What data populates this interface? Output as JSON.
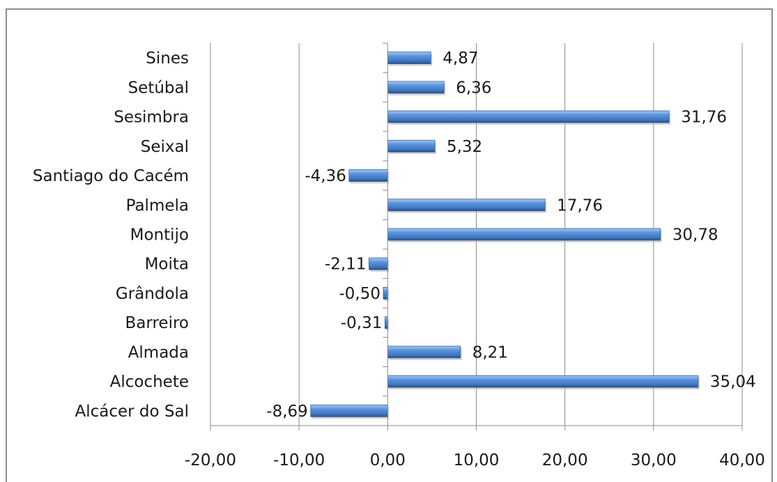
{
  "chart_data": {
    "type": "bar",
    "orientation": "horizontal",
    "categories": [
      "Alcácer do Sal",
      "Alcochete",
      "Almada",
      "Barreiro",
      "Grândola",
      "Moita",
      "Montijo",
      "Palmela",
      "Santiago do Cacém",
      "Seixal",
      "Sesimbra",
      "Setúbal",
      "Sines"
    ],
    "values": [
      -8.69,
      35.04,
      8.21,
      -0.31,
      -0.5,
      -2.11,
      30.78,
      17.76,
      -4.36,
      5.32,
      31.76,
      6.36,
      4.87
    ],
    "data_labels": [
      "-8,69",
      "35,04",
      "8,21",
      "-0,31",
      "-0,50",
      "-2,11",
      "30,78",
      "17,76",
      "-4,36",
      "5,32",
      "31,76",
      "6,36",
      "4,87"
    ],
    "xlim": [
      -20,
      40
    ],
    "x_ticks": [
      -20,
      -10,
      0,
      10,
      20,
      30,
      40
    ],
    "x_tick_labels": [
      "-20,00",
      "-10,00",
      "0,00",
      "10,00",
      "20,00",
      "30,00",
      "40,00"
    ],
    "grid": "vertical",
    "legend": "none",
    "bar_color": "#4a86d0",
    "title": "",
    "xlabel": "",
    "ylabel": ""
  }
}
